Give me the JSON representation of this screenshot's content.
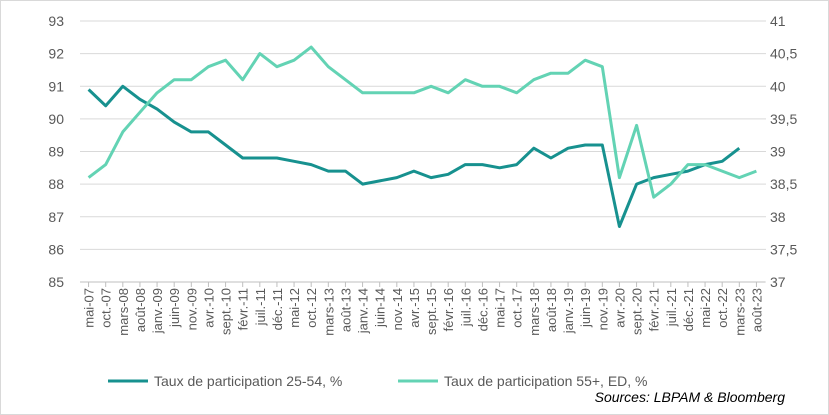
{
  "chart_data": {
    "type": "line",
    "categories": [
      "mai-07",
      "oct.-07",
      "mars-08",
      "août-08",
      "janv.-09",
      "juin-09",
      "nov.-09",
      "avr.-10",
      "sept.-10",
      "févr.-11",
      "juil.-11",
      "déc.-11",
      "mai-12",
      "oct.-12",
      "mars-13",
      "août-13",
      "janv.-14",
      "juin-14",
      "nov.-14",
      "avr.-15",
      "sept.-15",
      "févr.-16",
      "juil.-16",
      "déc.-16",
      "mai-17",
      "oct.-17",
      "mars-18",
      "août-18",
      "janv.-19",
      "juin-19",
      "nov.-19",
      "avr.-20",
      "sept.-20",
      "févr.-21",
      "juil.-21",
      "déc.-21",
      "mai-22",
      "oct.-22",
      "mars-23",
      "août-23"
    ],
    "series": [
      {
        "name": "Taux de participation 25-54, %",
        "color": "#17918f",
        "axis": "y",
        "values": [
          90.9,
          90.4,
          91.0,
          90.6,
          90.3,
          89.9,
          89.6,
          89.6,
          89.2,
          88.8,
          88.8,
          88.8,
          88.7,
          88.6,
          88.4,
          88.4,
          88.0,
          88.1,
          88.2,
          88.4,
          88.2,
          88.3,
          88.6,
          88.6,
          88.5,
          88.6,
          89.1,
          88.8,
          89.1,
          89.2,
          89.2,
          86.7,
          88.0,
          88.2,
          88.3,
          88.4,
          88.6,
          88.7,
          89.1,
          null
        ]
      },
      {
        "name": "Taux de participation 55+, ED, %",
        "color": "#63d3b4",
        "axis": "y2",
        "values": [
          38.6,
          38.8,
          39.3,
          39.6,
          39.9,
          40.1,
          40.1,
          40.3,
          40.4,
          40.1,
          40.5,
          40.3,
          40.4,
          40.6,
          40.3,
          40.1,
          39.9,
          39.9,
          39.9,
          39.9,
          40.0,
          39.9,
          40.1,
          40.0,
          40.0,
          39.9,
          40.1,
          40.2,
          40.2,
          40.4,
          40.3,
          38.6,
          39.4,
          38.3,
          38.5,
          38.8,
          38.8,
          38.7,
          38.6,
          38.7
        ]
      }
    ],
    "ylim": [
      85,
      93
    ],
    "yticks": [
      85,
      86,
      87,
      88,
      89,
      90,
      91,
      92,
      93
    ],
    "y2lim": [
      37,
      41
    ],
    "y2ticks": [
      37,
      {
        "value": 37.5,
        "label": "37,5"
      },
      38,
      {
        "value": 38.5,
        "label": "38,5"
      },
      39,
      {
        "value": 39.5,
        "label": "39,5"
      },
      40,
      {
        "value": 40.5,
        "label": "40,5"
      },
      41
    ],
    "grid": true,
    "legend": "bottom",
    "source": "Sources: LBPAM & Bloomberg"
  }
}
